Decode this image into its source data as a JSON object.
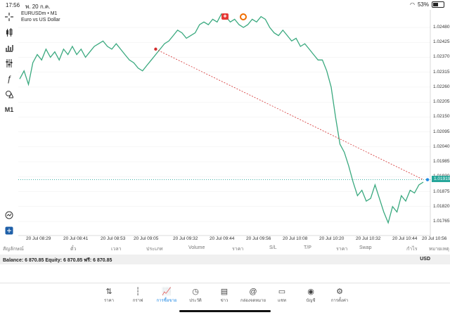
{
  "status": {
    "time": "17:56",
    "date": "พ. 20 ก.ค.",
    "battery": "53%",
    "battery_level": 0.53
  },
  "chart": {
    "symbol": "EURUSDm • M1",
    "description": "Euro vs US Dollar",
    "current_price": "1.01919",
    "y_ticks": [
      "1.02480",
      "1.02425",
      "1.02370",
      "1.02315",
      "1.02260",
      "1.02205",
      "1.02150",
      "1.02095",
      "1.02040",
      "1.01985",
      "1.01930",
      "1.01875",
      "1.01820",
      "1.01765"
    ],
    "x_ticks": [
      "20 Jul 08:29",
      "20 Jul 08:41",
      "20 Jul 08:53",
      "20 Jul 09:05",
      "20 Jul 09:32",
      "20 Jul 09:44",
      "20 Jul 09:56",
      "20 Jul 10:08",
      "20 Jul 10:20",
      "20 Jul 10:32",
      "20 Jul 10:44",
      "20 Jul 10:56"
    ],
    "timeframe": "M1"
  },
  "chart_data": {
    "type": "line",
    "ylim": [
      1.0174,
      1.0253
    ],
    "series": [
      {
        "values": [
          1.0229,
          1.0232,
          1.0227,
          1.0235,
          1.0238,
          1.0236,
          1.024,
          1.0237,
          1.0239,
          1.0236,
          1.024,
          1.0238,
          1.0241,
          1.0238,
          1.024,
          1.0237,
          1.0239,
          1.0241,
          1.0242,
          1.0243,
          1.0241,
          1.024,
          1.0242,
          1.024,
          1.0238,
          1.0236,
          1.0235,
          1.0233,
          1.0232,
          1.0234,
          1.0236,
          1.0238,
          1.024,
          1.0242,
          1.0243,
          1.0245,
          1.0247,
          1.0246,
          1.0244,
          1.0245,
          1.0246,
          1.0249,
          1.025,
          1.0249,
          1.0251,
          1.025,
          1.0253,
          1.0252,
          1.025,
          1.0251,
          1.0249,
          1.0248,
          1.0249,
          1.0251,
          1.025,
          1.0252,
          1.0251,
          1.0248,
          1.0246,
          1.0245,
          1.0247,
          1.0245,
          1.0243,
          1.0244,
          1.0241,
          1.0242,
          1.024,
          1.0238,
          1.0236,
          1.0236,
          1.0232,
          1.0226,
          1.0215,
          1.0205,
          1.0202,
          1.0197,
          1.0191,
          1.0186,
          1.0188,
          1.0184,
          1.0185,
          1.019,
          1.0185,
          1.018,
          1.0176,
          1.0182,
          1.018,
          1.0186,
          1.0184,
          1.0188,
          1.0187,
          1.019,
          1.0191
        ]
      }
    ],
    "trendline": {
      "from_index": 31,
      "from_value": 1.024,
      "to_index": 92,
      "to_value": 1.01919
    },
    "current_price_line": 1.01919,
    "colors": {
      "line": "#3aa97f",
      "trend": "#d32f2f",
      "grid": "#eeeeee",
      "price_line": "#26a69a"
    }
  },
  "trade_table": {
    "columns": [
      "สัญลักษณ์",
      "ตั๋ว",
      "เวลา",
      "ประเภท",
      "Volume",
      "ราคา",
      "S/L",
      "T/P",
      "ราคา",
      "Swap",
      "กำไร",
      "หมายเหตุ"
    ]
  },
  "balance": {
    "text": "Balance: 6 870.85 Equity: 6 870.85 ฟรี: 6 870.85",
    "currency": "USD"
  },
  "tabs": [
    {
      "label": "ราคา",
      "icon": "arrows-updown-icon"
    },
    {
      "label": "กราฟ",
      "icon": "candlestick-icon"
    },
    {
      "label": "การซื้อขาย",
      "icon": "trade-chart-icon"
    },
    {
      "label": "ประวัติ",
      "icon": "history-clock-icon"
    },
    {
      "label": "ข่าว",
      "icon": "news-icon"
    },
    {
      "label": "กล่องจดหมาย",
      "icon": "mailbox-at-icon"
    },
    {
      "label": "แชท",
      "icon": "chat-icon"
    },
    {
      "label": "บัญชี",
      "icon": "account-icon"
    },
    {
      "label": "การตั้งค่า",
      "icon": "gear-icon"
    }
  ]
}
